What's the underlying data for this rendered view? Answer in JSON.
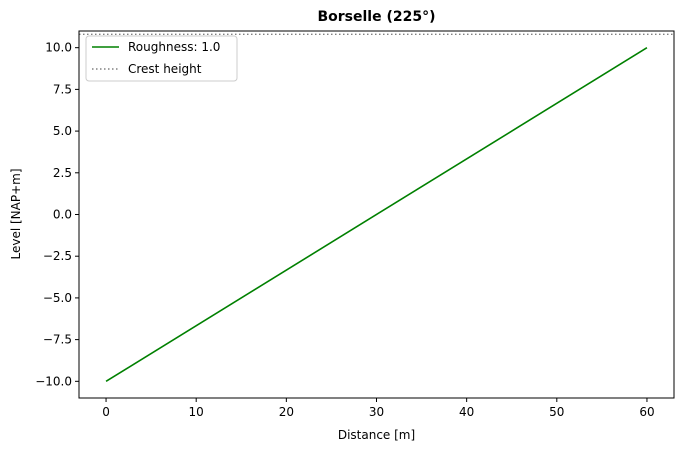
{
  "chart_data": {
    "type": "line",
    "title": "Borselle (225°)",
    "xlabel": "Distance [m]",
    "ylabel": "Level [NAP+m]",
    "xlim": [
      -3,
      63
    ],
    "ylim": [
      -11,
      11
    ],
    "x_ticks": [
      0,
      10,
      20,
      30,
      40,
      50,
      60
    ],
    "x_tick_labels": [
      "0",
      "10",
      "20",
      "30",
      "40",
      "50",
      "60"
    ],
    "y_ticks": [
      -10,
      -7.5,
      -5,
      -2.5,
      0,
      2.5,
      5,
      7.5,
      10
    ],
    "y_tick_labels": [
      "−10.0",
      "−7.5",
      "−5.0",
      "−2.5",
      "0.0",
      "2.5",
      "5.0",
      "7.5",
      "10.0"
    ],
    "grid": false,
    "legend_position": "top-left",
    "series": [
      {
        "name": "Roughness: 1.0",
        "style": "solid",
        "color": "#008000",
        "x": [
          0,
          60
        ],
        "y": [
          -10,
          10
        ]
      }
    ],
    "hlines": [
      {
        "name": "Crest height",
        "style": "dotted",
        "color": "#808080",
        "y": 10.8
      }
    ]
  }
}
